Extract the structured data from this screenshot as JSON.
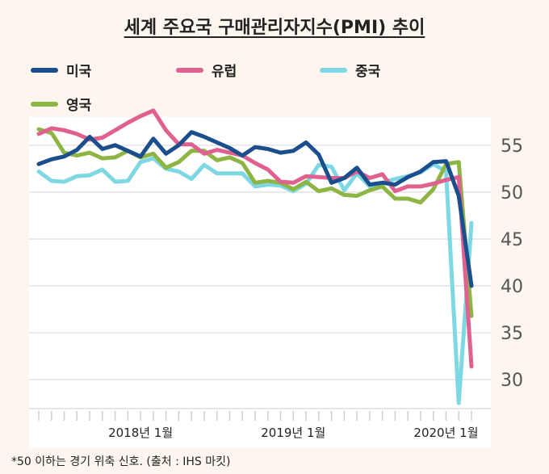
{
  "title": "세계 주요국 구매관리자지수(PMI) 추이",
  "footnote": "*50 이하는 경기 위축 신호. (출처 :  IHS 마킷)",
  "chart_data": {
    "type": "line",
    "title": "세계 주요국 구매관리자지수(PMI) 추이",
    "ylim": [
      27,
      58
    ],
    "yticks": [
      30,
      35,
      40,
      45,
      50,
      55
    ],
    "x": [
      "2017-05",
      "2017-06",
      "2017-07",
      "2017-08",
      "2017-09",
      "2017-10",
      "2017-11",
      "2017-12",
      "2018-01",
      "2018-02",
      "2018-03",
      "2018-04",
      "2018-05",
      "2018-06",
      "2018-07",
      "2018-08",
      "2018-09",
      "2018-10",
      "2018-11",
      "2018-12",
      "2019-01",
      "2019-02",
      "2019-03",
      "2019-04",
      "2019-05",
      "2019-06",
      "2019-07",
      "2019-08",
      "2019-09",
      "2019-10",
      "2019-11",
      "2019-12",
      "2020-01",
      "2020-02",
      "2020-03"
    ],
    "xtick_labels": [
      {
        "x": "2018-01",
        "label": "2018년 1월"
      },
      {
        "x": "2019-01",
        "label": "2019년 1월"
      },
      {
        "x": "2020-01",
        "label": "2020년 1월"
      }
    ],
    "series": [
      {
        "name": "미국",
        "color": "#1b4e8c",
        "values": [
          53.0,
          53.5,
          53.8,
          54.5,
          55.9,
          54.6,
          55.0,
          54.4,
          53.8,
          55.7,
          54.1,
          55.0,
          56.4,
          55.9,
          55.3,
          54.7,
          53.9,
          54.8,
          54.6,
          54.2,
          54.4,
          55.3,
          54.0,
          51.0,
          51.5,
          52.6,
          50.8,
          51.0,
          50.8,
          51.6,
          52.2,
          53.2,
          53.3,
          49.6,
          40.0
        ]
      },
      {
        "name": "유럽",
        "color": "#e0608f",
        "values": [
          56.2,
          56.8,
          56.6,
          56.2,
          55.6,
          55.8,
          56.6,
          57.4,
          58.1,
          58.7,
          56.6,
          55.1,
          55.1,
          54.1,
          54.5,
          54.2,
          53.9,
          53.1,
          52.4,
          51.1,
          51.0,
          51.7,
          51.6,
          51.5,
          51.5,
          52.2,
          51.5,
          51.9,
          50.1,
          50.6,
          50.6,
          50.9,
          51.3,
          51.6,
          31.4
        ]
      },
      {
        "name": "중국",
        "color": "#7dd8e3",
        "values": [
          52.2,
          51.2,
          51.1,
          51.7,
          51.8,
          52.4,
          51.1,
          51.2,
          53.2,
          53.6,
          52.5,
          52.2,
          51.4,
          52.9,
          52.0,
          52.0,
          52.0,
          50.6,
          50.8,
          50.7,
          50.1,
          50.9,
          52.9,
          52.7,
          50.2,
          52.0,
          50.6,
          51.0,
          51.4,
          51.7,
          52.1,
          53.0,
          52.2,
          27.5,
          46.7
        ]
      },
      {
        "name": "영국",
        "color": "#8db543",
        "values": [
          56.7,
          56.3,
          54.2,
          53.9,
          54.2,
          53.6,
          53.7,
          54.4,
          53.7,
          54.1,
          52.6,
          53.2,
          54.4,
          54.4,
          53.4,
          53.7,
          53.1,
          51.0,
          51.2,
          51.0,
          50.3,
          51.1,
          50.1,
          50.4,
          49.7,
          49.6,
          50.2,
          50.6,
          49.3,
          49.3,
          48.9,
          50.3,
          53.0,
          53.2,
          36.8
        ]
      }
    ]
  }
}
